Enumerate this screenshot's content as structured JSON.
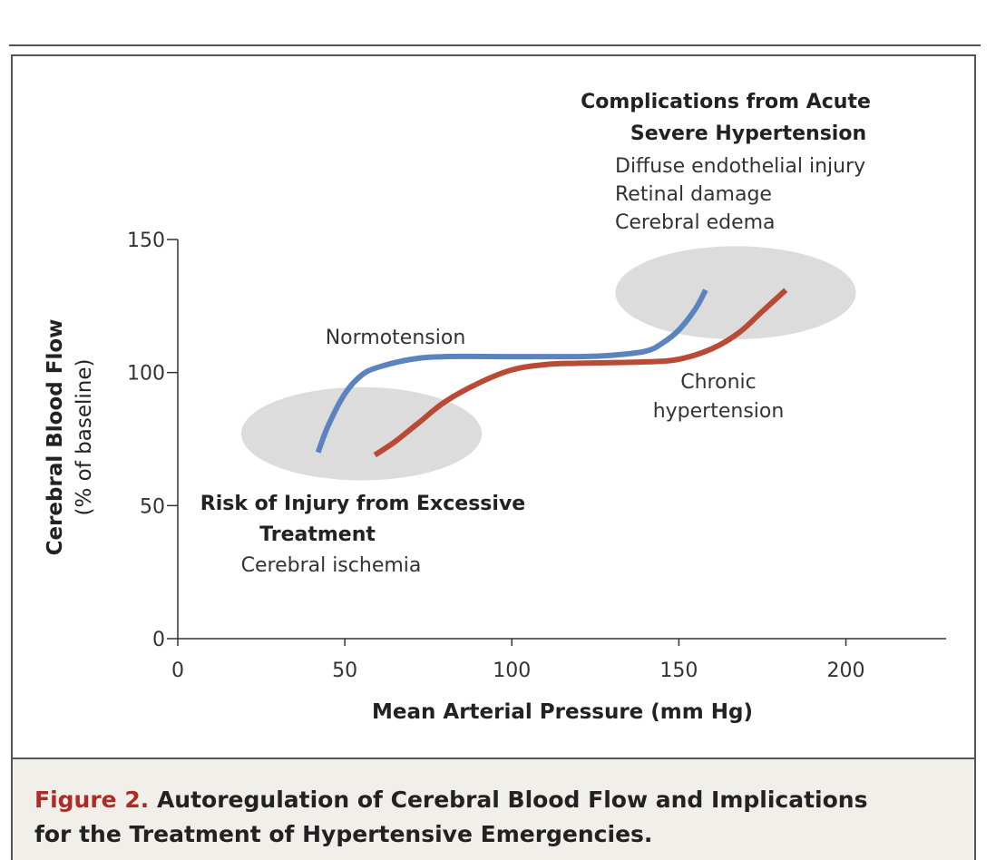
{
  "chart_data": {
    "type": "line",
    "xlabel": "Mean Arterial Pressure (mm Hg)",
    "ylabel": [
      "Cerebral Blood Flow",
      "(% of baseline)"
    ],
    "xlim": [
      0,
      230
    ],
    "ylim": [
      0,
      150
    ],
    "x_ticks": [
      0,
      50,
      100,
      150,
      200
    ],
    "y_ticks": [
      0,
      50,
      100,
      150
    ],
    "x_tick_labels": [
      "0",
      "50",
      "100",
      "150",
      "200"
    ],
    "y_tick_labels": [
      "0",
      "50",
      "100",
      "150"
    ],
    "grid": false,
    "series": [
      {
        "name": "Normotension",
        "color": "#5b84be",
        "points": [
          [
            42,
            70
          ],
          [
            45,
            80
          ],
          [
            50,
            92
          ],
          [
            55,
            99
          ],
          [
            60,
            102
          ],
          [
            70,
            105
          ],
          [
            80,
            106
          ],
          [
            100,
            106
          ],
          [
            120,
            106
          ],
          [
            130,
            106.5
          ],
          [
            140,
            108
          ],
          [
            145,
            111
          ],
          [
            150,
            116
          ],
          [
            155,
            124
          ],
          [
            158,
            131
          ]
        ]
      },
      {
        "name": "Chronic hypertension",
        "color": "#b84a36",
        "points": [
          [
            59,
            69
          ],
          [
            65,
            74
          ],
          [
            72,
            81
          ],
          [
            80,
            89
          ],
          [
            90,
            96
          ],
          [
            100,
            101
          ],
          [
            110,
            103
          ],
          [
            120,
            103.5
          ],
          [
            140,
            104
          ],
          [
            150,
            105
          ],
          [
            160,
            109
          ],
          [
            168,
            115
          ],
          [
            175,
            123
          ],
          [
            182,
            131
          ]
        ]
      }
    ],
    "regions": [
      {
        "name": "injury-risk-zone",
        "center": [
          55,
          77
        ],
        "radius": [
          36,
          17.5
        ],
        "color": "#dcdcdc"
      },
      {
        "name": "complications-zone",
        "center": [
          167,
          130
        ],
        "radius": [
          36,
          17.5
        ],
        "color": "#dcdcdc"
      }
    ],
    "annotations": {
      "complications_title": [
        "Complications from Acute",
        "Severe Hypertension"
      ],
      "complications_items": [
        "Diffuse endothelial injury",
        "Retinal damage",
        "Cerebral edema"
      ],
      "risk_title": [
        "Risk of Injury from Excessive",
        "Treatment"
      ],
      "risk_items": [
        "Cerebral ischemia"
      ],
      "normotension_label": "Normotension",
      "hypertension_label": [
        "Chronic",
        "hypertension"
      ]
    }
  },
  "caption": {
    "figure_label": "Figure 2.",
    "title_line1": "Autoregulation of Cerebral Blood Flow and Implications",
    "title_line2": "for the Treatment of Hypertensive Emergencies."
  }
}
